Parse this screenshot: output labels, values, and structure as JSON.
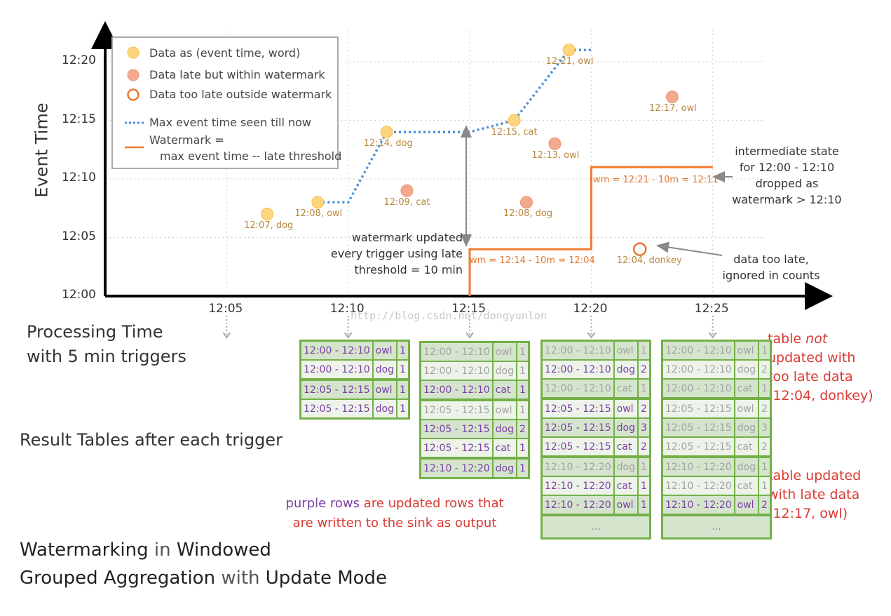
{
  "colors": {
    "on_time": "#fdd57e",
    "late_within": "#f2a98e",
    "too_late": "#e8772e",
    "max_event_line": "#4a90d9",
    "watermark_line": "#ef7b2e",
    "table_border": "#74b047",
    "updated_text": "#7b3fa6",
    "annotation_red": "#d93a33"
  },
  "axes": {
    "y_label": "Event Time",
    "x_label_line1": "Processing Time",
    "x_label_line2": "with 5 min triggers",
    "y_ticks": [
      "12:00",
      "12:05",
      "12:10",
      "12:15",
      "12:20"
    ],
    "x_ticks": [
      "12:05",
      "12:10",
      "12:15",
      "12:20",
      "12:25"
    ]
  },
  "legend": {
    "on_time": "Data as (event time, word)",
    "late_within": "Data late but within watermark",
    "too_late": "Data too late outside watermark",
    "max_event": "Max event time seen till now",
    "watermark_line1": "Watermark =",
    "watermark_line2": "max event time -- late threshold"
  },
  "points": [
    {
      "label": "12:07, dog",
      "event": "12:07",
      "proc": "12:06:40",
      "kind": "on_time"
    },
    {
      "label": "12:08, owl",
      "event": "12:08",
      "proc": "12:08:45",
      "kind": "on_time"
    },
    {
      "label": "12:14, dog",
      "event": "12:14",
      "proc": "12:11:35",
      "kind": "on_time"
    },
    {
      "label": "12:09, cat",
      "event": "12:09",
      "proc": "12:12:25",
      "kind": "late_within"
    },
    {
      "label": "12:15, cat",
      "event": "12:15",
      "proc": "12:16:50",
      "kind": "on_time"
    },
    {
      "label": "12:08, dog",
      "event": "12:08",
      "proc": "12:17:20",
      "kind": "late_within"
    },
    {
      "label": "12:13, owl",
      "event": "12:13",
      "proc": "12:18:30",
      "kind": "late_within"
    },
    {
      "label": "12:21, owl",
      "event": "12:21",
      "proc": "12:19:05",
      "kind": "on_time"
    },
    {
      "label": "12:04, donkey",
      "event": "12:04",
      "proc": "12:22:00",
      "kind": "too_late"
    },
    {
      "label": "12:17, owl",
      "event": "12:17",
      "proc": "12:23:20",
      "kind": "late_within"
    }
  ],
  "max_event_line": [
    [
      "12:08:45",
      "12:08"
    ],
    [
      "12:10:00",
      "12:08"
    ],
    [
      "12:11:35",
      "12:14"
    ],
    [
      "12:15:00",
      "12:14"
    ],
    [
      "12:16:50",
      "12:15"
    ],
    [
      "12:19:05",
      "12:21"
    ],
    [
      "12:20:00",
      "12:21"
    ]
  ],
  "watermark_line": [
    [
      "12:15:00",
      "12:00"
    ],
    [
      "12:15:00",
      "12:04"
    ],
    [
      "12:20:00",
      "12:04"
    ],
    [
      "12:20:00",
      "12:11"
    ],
    [
      "12:25:00",
      "12:11"
    ]
  ],
  "annotations": {
    "wm1": "wm = 12:14 - 10m = 12:04",
    "wm2": "wm = 12:21 - 10m = 12:11",
    "threshold": [
      "watermark updated",
      "every trigger using late",
      "threshold = 10 min"
    ],
    "intermediate": [
      "intermediate state",
      "for 12:00 - 12:10",
      "dropped as",
      "watermark > 12:10"
    ],
    "too_late": [
      "data too late,",
      "ignored in counts"
    ],
    "not_updated": [
      "table ",
      "not",
      " updated with",
      "too late data",
      "(12:04, donkey)"
    ],
    "updated": [
      "table updated",
      "with late data",
      "(12:17, owl)"
    ],
    "purple_note_1": "purple rows",
    "purple_note_2": " are updated rows that",
    "purple_note_3": "are written to the sink as output",
    "result_tables": "Result Tables after each trigger",
    "site_watermark": "http://blog.csdn.net/dongyunlon"
  },
  "title": {
    "w1": "Watermarking",
    "w2": " in ",
    "w3": "Windowed",
    "w4": "Grouped Aggregation",
    "w5": " with ",
    "w6": "Update Mode"
  },
  "tables": [
    {
      "trigger": "12:10",
      "more": false,
      "rows": [
        {
          "window": "12:00 - 12:10",
          "word": "owl",
          "count": "1",
          "updated": true
        },
        {
          "window": "12:00 - 12:10",
          "word": "dog",
          "count": "1",
          "updated": true
        },
        {
          "window": "12:05 - 12:15",
          "word": "owl",
          "count": "1",
          "updated": true
        },
        {
          "window": "12:05 - 12:15",
          "word": "dog",
          "count": "1",
          "updated": true
        }
      ]
    },
    {
      "trigger": "12:15",
      "more": false,
      "rows": [
        {
          "window": "12:00 - 12:10",
          "word": "owl",
          "count": "1",
          "updated": false
        },
        {
          "window": "12:00 - 12:10",
          "word": "dog",
          "count": "1",
          "updated": false
        },
        {
          "window": "12:00 - 12:10",
          "word": "cat",
          "count": "1",
          "updated": true
        },
        {
          "window": "12:05 - 12:15",
          "word": "owl",
          "count": "1",
          "updated": false
        },
        {
          "window": "12:05 - 12:15",
          "word": "dog",
          "count": "2",
          "updated": true
        },
        {
          "window": "12:05 - 12:15",
          "word": "cat",
          "count": "1",
          "updated": true
        },
        {
          "window": "12:10 - 12:20",
          "word": "dog",
          "count": "1",
          "updated": true
        }
      ]
    },
    {
      "trigger": "12:20",
      "more": true,
      "rows": [
        {
          "window": "12:00 - 12:10",
          "word": "owl",
          "count": "1",
          "updated": false
        },
        {
          "window": "12:00 - 12:10",
          "word": "dog",
          "count": "2",
          "updated": true
        },
        {
          "window": "12:00 - 12:10",
          "word": "cat",
          "count": "1",
          "updated": false
        },
        {
          "window": "12:05 - 12:15",
          "word": "owl",
          "count": "2",
          "updated": true
        },
        {
          "window": "12:05 - 12:15",
          "word": "dog",
          "count": "3",
          "updated": true
        },
        {
          "window": "12:05 - 12:15",
          "word": "cat",
          "count": "2",
          "updated": true
        },
        {
          "window": "12:10 - 12:20",
          "word": "dog",
          "count": "1",
          "updated": false
        },
        {
          "window": "12:10 - 12:20",
          "word": "cat",
          "count": "1",
          "updated": true
        },
        {
          "window": "12:10 - 12:20",
          "word": "owl",
          "count": "1",
          "updated": true
        }
      ]
    },
    {
      "trigger": "12:25",
      "more": true,
      "rows": [
        {
          "window": "12:00 - 12:10",
          "word": "owl",
          "count": "1",
          "updated": false
        },
        {
          "window": "12:00 - 12:10",
          "word": "dog",
          "count": "2",
          "updated": false
        },
        {
          "window": "12:00 - 12:10",
          "word": "cat",
          "count": "1",
          "updated": false
        },
        {
          "window": "12:05 - 12:15",
          "word": "owl",
          "count": "2",
          "updated": false
        },
        {
          "window": "12:05 - 12:15",
          "word": "dog",
          "count": "3",
          "updated": false
        },
        {
          "window": "12:05 - 12:15",
          "word": "cat",
          "count": "2",
          "updated": false
        },
        {
          "window": "12:10 - 12:20",
          "word": "dog",
          "count": "1",
          "updated": false
        },
        {
          "window": "12:10 - 12:20",
          "word": "cat",
          "count": "1",
          "updated": false
        },
        {
          "window": "12:10 - 12:20",
          "word": "owl",
          "count": "2",
          "updated": true
        }
      ]
    }
  ],
  "more_label": "..."
}
